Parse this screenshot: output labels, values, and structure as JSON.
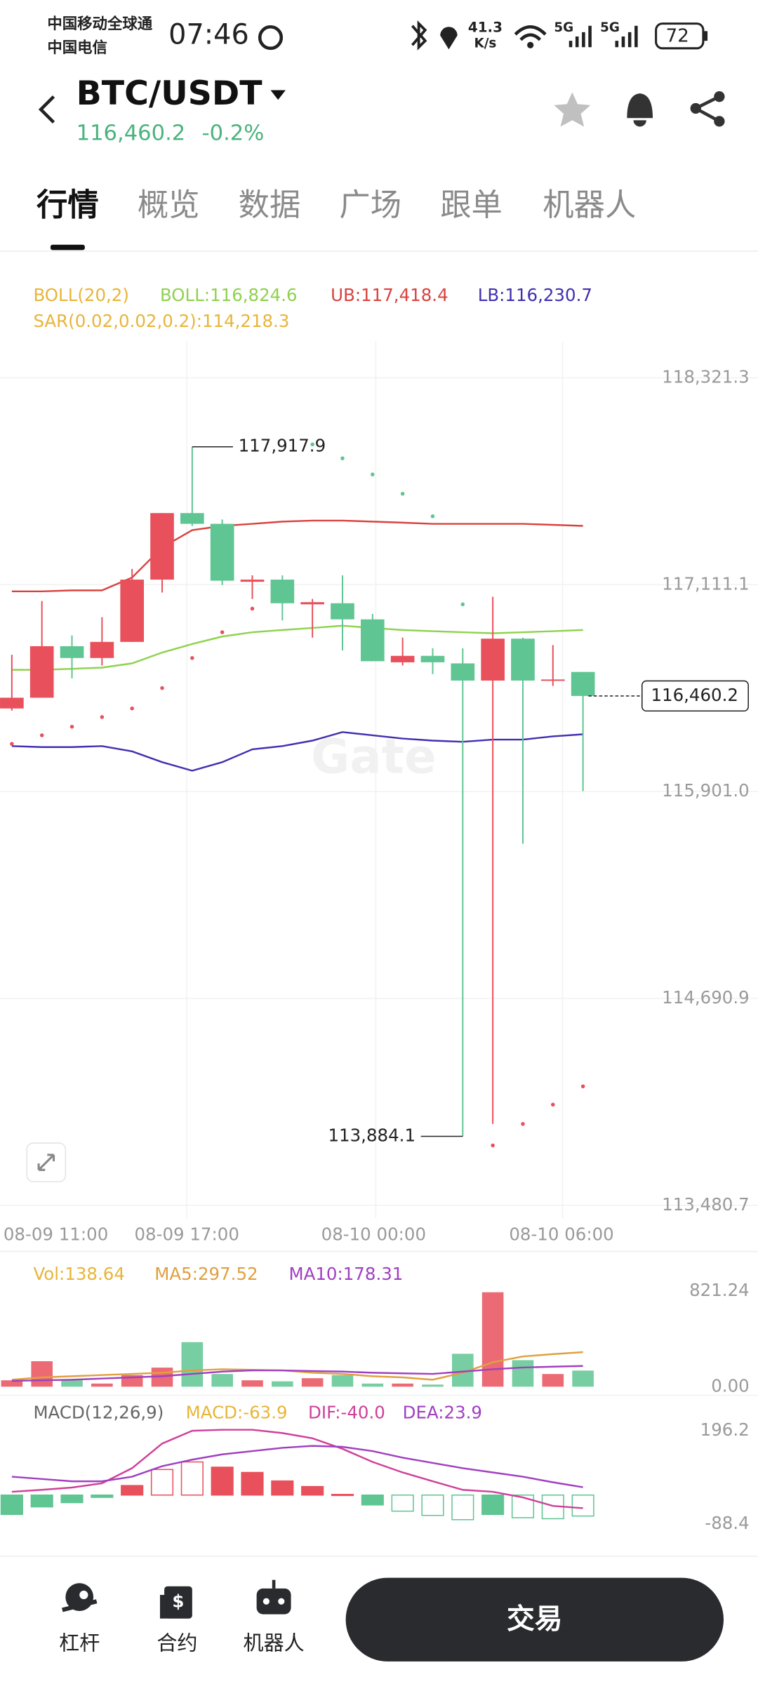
{
  "status_bar": {
    "carriers": [
      "中国移动全球通",
      "中国电信"
    ],
    "time": "07:46",
    "network_speed": "41.3",
    "speed_unit": "K/s",
    "signals": [
      "5G",
      "5G"
    ],
    "battery": "72"
  },
  "header": {
    "pair": "BTC/USDT",
    "price": "116,460.2",
    "change": "-0.2%"
  },
  "tabs": {
    "items": [
      "行情",
      "概览",
      "数据",
      "广场",
      "跟单",
      "机器人"
    ],
    "active": 0
  },
  "indicators": {
    "boll": "BOLL(20,2)",
    "boll_mid": "BOLL:116,824.6",
    "ub": "UB:117,418.4",
    "lb": "LB:116,230.7",
    "sar": "SAR(0.02,0.02,0.2):114,218.3"
  },
  "watermark": "Gate",
  "price_chart": {
    "type": "candlestick",
    "ylim": [
      113480.7,
      118321.3
    ],
    "yticks": [
      {
        "value": 118321.3,
        "label": "118,321.3"
      },
      {
        "value": 117111.1,
        "label": "117,111.1"
      },
      {
        "value": 115901.0,
        "label": "115,901.0"
      },
      {
        "value": 114690.9,
        "label": "114,690.9"
      },
      {
        "value": 113480.7,
        "label": "113,480.7"
      }
    ],
    "up_color": "#e8505b",
    "down_color": "#5fc592",
    "open": [
      116387.1,
      116449.9,
      116751.3,
      116682.2,
      116776.4,
      117140.7,
      117530.0,
      117467.2,
      117128.1,
      117140.7,
      116996.2,
      117002.5,
      116908.3,
      116657.1,
      116694.8,
      116650.8,
      116550.3,
      116795.3,
      116550.3,
      116600.6
    ],
    "high": [
      116701.1,
      117015.1,
      116814.1,
      116920.9,
      117203.5,
      117530.0,
      117917.9,
      117492.3,
      117165.8,
      117165.8,
      117027.6,
      117165.8,
      116939.7,
      116801.5,
      116738.7,
      116738.7,
      117040.2,
      116801.5,
      116757.6,
      116600.6
    ],
    "low": [
      116374.5,
      116449.9,
      116562.9,
      116638.3,
      116776.4,
      117065.3,
      117454.7,
      117109.3,
      117027.6,
      116902.0,
      116801.5,
      116726.2,
      116663.4,
      116638.3,
      116588.0,
      113884.1,
      113956.7,
      115595.8,
      116518.9,
      115903.5
    ],
    "close": [
      116449.9,
      116751.3,
      116682.2,
      116776.4,
      117140.7,
      117530.0,
      117467.2,
      117134.4,
      117140.7,
      117002.5,
      117008.8,
      116908.3,
      116663.4,
      116694.8,
      116657.1,
      116550.3,
      116795.3,
      116550.3,
      116556.6,
      116460.2
    ],
    "boll_upper": {
      "color": "#d9433f",
      "values": [
        117072,
        117072,
        117078,
        117078,
        117153,
        117329,
        117430,
        117455,
        117467,
        117480,
        117486,
        117486,
        117480,
        117474,
        117467,
        117467,
        117467,
        117467,
        117461,
        117455
      ]
    },
    "boll_mid": {
      "color": "#8fd24f",
      "values": [
        116613,
        116613,
        116619,
        116626,
        116651,
        116714,
        116764,
        116808,
        116833,
        116846,
        116858,
        116871,
        116858,
        116846,
        116839,
        116833,
        116827,
        116833,
        116839,
        116846
      ]
    },
    "boll_lower": {
      "color": "#4030b0",
      "values": [
        116167,
        116161,
        116161,
        116167,
        116136,
        116073,
        116023,
        116073,
        116148,
        116167,
        116199,
        116249,
        116230,
        116211,
        116199,
        116192,
        116205,
        116205,
        116224,
        116236
      ]
    },
    "sar": {
      "values": [
        116179.8,
        116230.1,
        116280.3,
        116336.8,
        116387.1,
        116506.4,
        116682.2,
        116832.9,
        116971.1,
        null,
        117931.9,
        117850.3,
        117756.1,
        117643.1,
        117511.2,
        116996.2,
        113831.1,
        113956.7,
        114069.7,
        114176.5
      ]
    },
    "high_label": {
      "value": 117917.9,
      "label": "117,917.9"
    },
    "low_label": {
      "value": 113884.1,
      "label": "113,884.1"
    },
    "last_price": {
      "value": 116460.2,
      "label": "116,460.2"
    },
    "x_labels": [
      "08-09 11:00",
      "08-09 17:00",
      "08-10 00:00",
      "08-10 06:00"
    ]
  },
  "volume": {
    "legend": [
      "Vol:138.64",
      "MA5:297.52",
      "MA10:178.31"
    ],
    "ylim": [
      0,
      821.24
    ],
    "yticks": [
      {
        "value": 821.24,
        "label": "821.24"
      },
      {
        "value": 0,
        "label": "0.00"
      }
    ],
    "values": [
      55,
      219,
      55,
      27,
      100,
      164,
      383,
      109,
      55,
      46,
      73,
      100,
      27,
      27,
      18,
      283,
      812,
      228,
      109,
      138.64
    ],
    "ma5": {
      "color": "#e0a040",
      "values": [
        60,
        80,
        90,
        100,
        110,
        120,
        140,
        150,
        145,
        140,
        120,
        110,
        90,
        80,
        60,
        120,
        210,
        260,
        280,
        297.52
      ]
    },
    "ma10": {
      "color": "#a040c0",
      "values": [
        50,
        55,
        60,
        70,
        80,
        90,
        110,
        130,
        140,
        140,
        135,
        130,
        120,
        115,
        110,
        130,
        150,
        165,
        172,
        178.31
      ]
    }
  },
  "macd": {
    "legend": [
      "MACD(12,26,9)",
      "MACD:-63.9",
      "DIF:-40.0",
      "DEA:23.9"
    ],
    "ylim": [
      -88.4,
      196.2
    ],
    "yticks": [
      196.2,
      -88.4
    ],
    "values": [
      -59,
      -36,
      -23,
      -7,
      29,
      78,
      101,
      85,
      69,
      43,
      26,
      2,
      -30,
      -49,
      -62,
      -75,
      -59,
      -69,
      -72,
      -63.9
    ],
    "hollow": [
      false,
      false,
      false,
      false,
      false,
      true,
      true,
      false,
      false,
      false,
      false,
      false,
      false,
      true,
      true,
      true,
      false,
      true,
      true,
      true
    ],
    "dif": {
      "color": "#d0409a",
      "values": [
        10,
        16,
        23,
        36,
        82,
        157,
        196,
        199,
        199,
        189,
        173,
        141,
        101,
        69,
        42,
        16,
        10,
        -7,
        -33,
        -40
      ]
    },
    "dea": {
      "color": "#a040c0",
      "values": [
        56,
        49,
        42,
        42,
        56,
        88,
        108,
        124,
        134,
        144,
        150,
        147,
        134,
        114,
        98,
        82,
        69,
        56,
        39,
        23.9
      ]
    }
  },
  "bottom_nav": {
    "items": [
      "杠杆",
      "合约",
      "机器人"
    ],
    "trade_button": "交易"
  }
}
